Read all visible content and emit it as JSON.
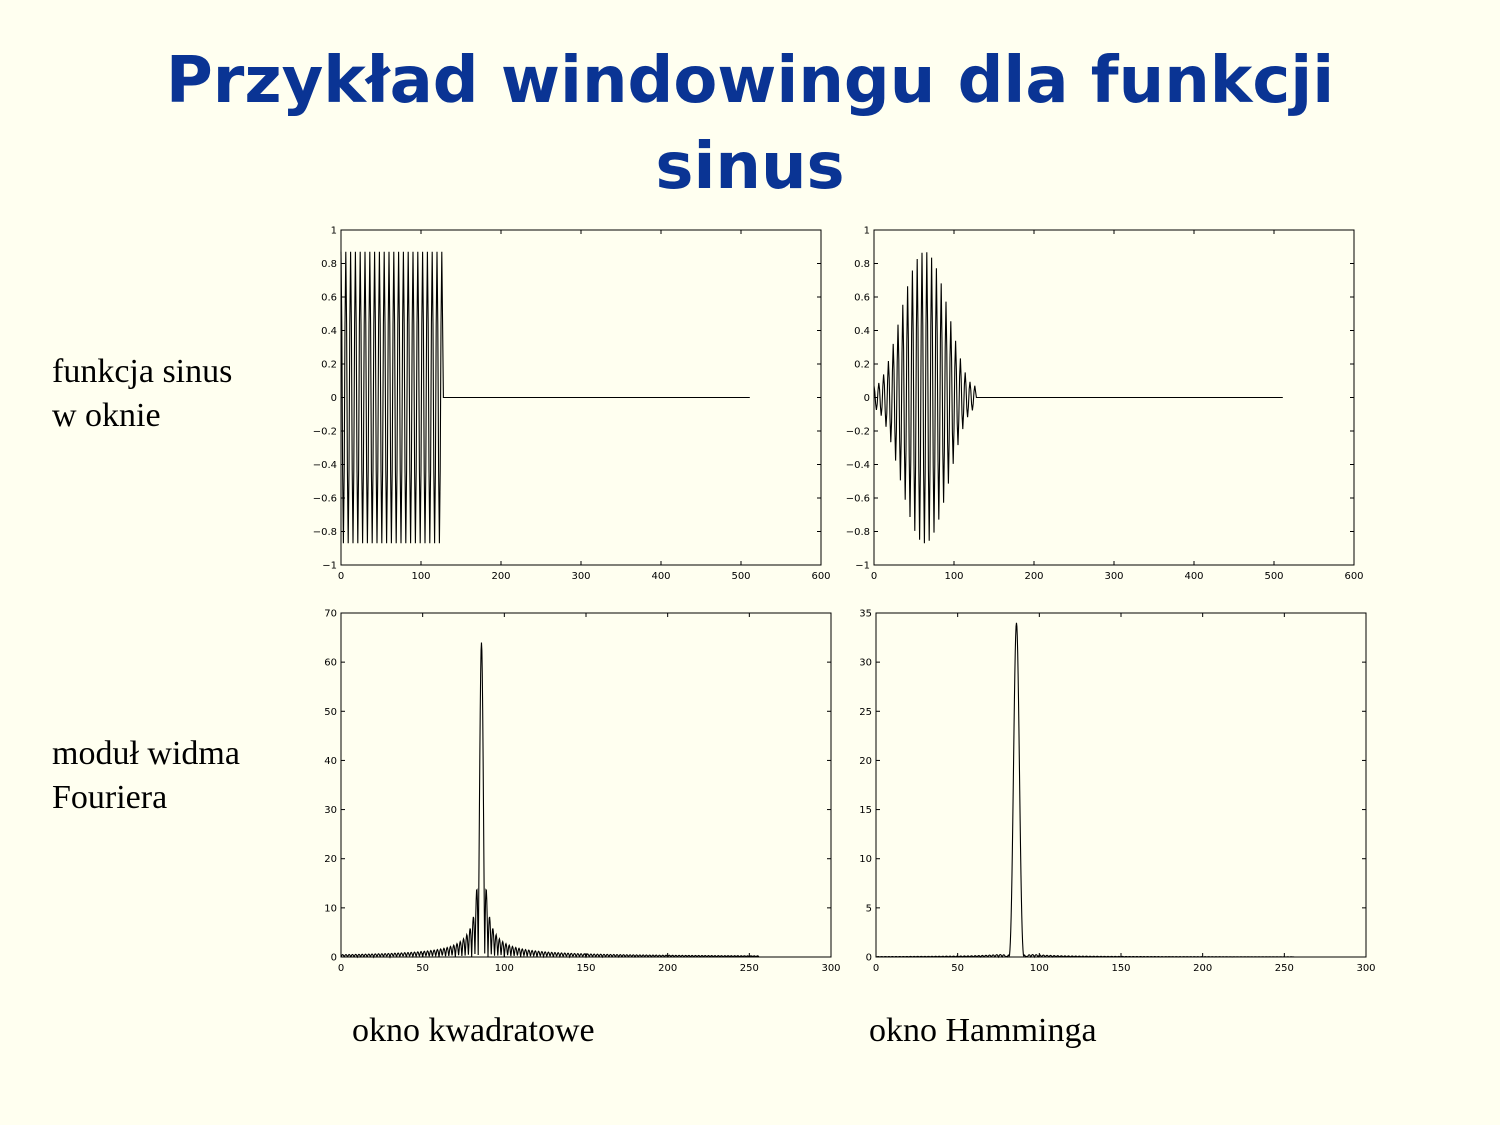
{
  "slide": {
    "title_line1": "Przykład windowingu dla funkcji",
    "title_line2": "sinus",
    "row_label_top": [
      "funkcja sinus",
      "w oknie"
    ],
    "row_label_bottom": [
      "moduł widma",
      "Fouriera"
    ],
    "col_label_left": "okno kwadratowe",
    "col_label_right": "okno Hamminga"
  },
  "chart_data": [
    {
      "id": "sin-rect",
      "type": "line",
      "title": "",
      "xlabel": "",
      "ylabel": "",
      "xlim": [
        0,
        600
      ],
      "ylim": [
        -1,
        1
      ],
      "xticks": [
        0,
        100,
        200,
        300,
        400,
        500,
        600
      ],
      "yticks": [
        -1,
        -0.8,
        -0.6,
        -0.4,
        -0.2,
        0,
        0.2,
        0.4,
        0.6,
        0.8,
        1
      ],
      "xtick_labels": [
        "0",
        "100",
        "200",
        "300",
        "400",
        "500",
        "600"
      ],
      "ytick_labels": [
        "−1",
        "−0.8",
        "−0.6",
        "−0.4",
        "−0.2",
        "0",
        "0.2",
        "0.4",
        "0.6",
        "0.8",
        "1"
      ],
      "series": [
        {
          "signal": "sine",
          "window": "rectangular",
          "amplitude": 0.87,
          "period_samples": 6,
          "window_length": 128,
          "total_length": 512
        }
      ]
    },
    {
      "id": "sin-hamming",
      "type": "line",
      "title": "",
      "xlabel": "",
      "ylabel": "",
      "xlim": [
        0,
        600
      ],
      "ylim": [
        -1,
        1
      ],
      "xticks": [
        0,
        100,
        200,
        300,
        400,
        500,
        600
      ],
      "yticks": [
        -1,
        -0.8,
        -0.6,
        -0.4,
        -0.2,
        0,
        0.2,
        0.4,
        0.6,
        0.8,
        1
      ],
      "xtick_labels": [
        "0",
        "100",
        "200",
        "300",
        "400",
        "500",
        "600"
      ],
      "ytick_labels": [
        "−1",
        "−0.8",
        "−0.6",
        "−0.4",
        "−0.2",
        "0",
        "0.2",
        "0.4",
        "0.6",
        "0.8",
        "1"
      ],
      "series": [
        {
          "signal": "sine",
          "window": "hamming",
          "amplitude": 0.87,
          "period_samples": 6,
          "window_length": 128,
          "total_length": 512
        }
      ]
    },
    {
      "id": "fft-rect",
      "type": "line",
      "title": "",
      "xlabel": "",
      "ylabel": "",
      "xlim": [
        0,
        300
      ],
      "ylim": [
        0,
        70
      ],
      "xticks": [
        0,
        50,
        100,
        150,
        200,
        250,
        300
      ],
      "yticks": [
        0,
        10,
        20,
        30,
        40,
        50,
        60,
        70
      ],
      "xtick_labels": [
        "0",
        "50",
        "100",
        "150",
        "200",
        "250",
        "300"
      ],
      "ytick_labels": [
        "0",
        "10",
        "20",
        "30",
        "40",
        "50",
        "60",
        "70"
      ],
      "series": [
        {
          "signal": "spectrum",
          "window": "rectangular",
          "peak_x": 86,
          "peak_y": 64,
          "x_max": 256
        }
      ]
    },
    {
      "id": "fft-hamming",
      "type": "line",
      "title": "",
      "xlabel": "",
      "ylabel": "",
      "xlim": [
        0,
        300
      ],
      "ylim": [
        0,
        35
      ],
      "xticks": [
        0,
        50,
        100,
        150,
        200,
        250,
        300
      ],
      "yticks": [
        0,
        5,
        10,
        15,
        20,
        25,
        30,
        35
      ],
      "xtick_labels": [
        "0",
        "50",
        "100",
        "150",
        "200",
        "250",
        "300"
      ],
      "ytick_labels": [
        "0",
        "5",
        "10",
        "15",
        "20",
        "25",
        "30",
        "35"
      ],
      "series": [
        {
          "signal": "spectrum",
          "window": "hamming",
          "peak_x": 86,
          "peak_y": 34,
          "x_max": 256
        }
      ]
    }
  ]
}
